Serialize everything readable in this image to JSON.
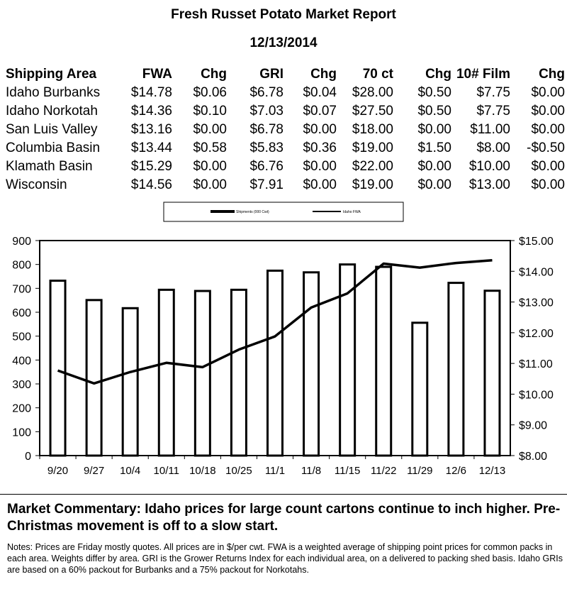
{
  "report": {
    "title": "Fresh Russet Potato Market Report",
    "date": "12/13/2014"
  },
  "table": {
    "headers": [
      "Shipping Area",
      "FWA",
      "Chg",
      "GRI",
      "Chg",
      "70 ct",
      "Chg",
      "10# Film",
      "Chg"
    ],
    "rows": [
      [
        "Idaho Burbanks",
        "$14.78",
        "$0.06",
        "$6.78",
        "$0.04",
        "$28.00",
        "$0.50",
        "$7.75",
        "$0.00"
      ],
      [
        "Idaho Norkotah",
        "$14.36",
        "$0.10",
        "$7.03",
        "$0.07",
        "$27.50",
        "$0.50",
        "$7.75",
        "$0.00"
      ],
      [
        "San Luis Valley",
        "$13.16",
        "$0.00",
        "$6.78",
        "$0.00",
        "$18.00",
        "$0.00",
        "$11.00",
        "$0.00"
      ],
      [
        "Columbia Basin",
        "$13.44",
        "$0.58",
        "$5.83",
        "$0.36",
        "$19.00",
        "$1.50",
        "$8.00",
        "-$0.50"
      ],
      [
        "Klamath Basin",
        "$15.29",
        "$0.00",
        "$6.76",
        "$0.00",
        "$22.00",
        "$0.00",
        "$10.00",
        "$0.00"
      ],
      [
        "Wisconsin",
        "$14.56",
        "$0.00",
        "$7.91",
        "$0.00",
        "$19.00",
        "$0.00",
        "$13.00",
        "$0.00"
      ]
    ]
  },
  "chart_data": {
    "type": "bar",
    "categories": [
      "9/20",
      "9/27",
      "10/4",
      "10/11",
      "10/18",
      "10/25",
      "11/1",
      "11/8",
      "11/15",
      "11/22",
      "11/29",
      "12/6",
      "12/13"
    ],
    "series": [
      {
        "name": "Shipments (000 Cwt)",
        "type": "bar",
        "axis": "left",
        "values": [
          732,
          651,
          617,
          694,
          689,
          694,
          774,
          767,
          800,
          790,
          556,
          723,
          690
        ]
      },
      {
        "name": "Idaho FWA",
        "type": "line",
        "axis": "right",
        "values": [
          10.77,
          10.35,
          10.72,
          11.02,
          10.88,
          11.45,
          11.88,
          12.82,
          13.28,
          14.25,
          14.12,
          14.27,
          14.36
        ]
      }
    ],
    "ylim_left": [
      0,
      900
    ],
    "yticks_left": [
      "0",
      "100",
      "200",
      "300",
      "400",
      "500",
      "600",
      "700",
      "800",
      "900"
    ],
    "ylim_right": [
      8,
      15
    ],
    "yticks_right": [
      "$8.00",
      "$9.00",
      "$10.00",
      "$11.00",
      "$12.00",
      "$13.00",
      "$14.00",
      "$15.00"
    ],
    "legend_position": "top"
  },
  "commentary": "Market Commentary: Idaho prices for large count cartons continue to inch higher. Pre-Christmas movement is off to a slow start.",
  "notes": "Notes: Prices are Friday mostly quotes. All prices are in $/per cwt. FWA is a weighted average of shipping point prices for  common packs in each area. Weights differ by area. GRI is the Grower Returns Index for each individual area, on a delivered to packing shed basis. Idaho GRIs are based on a 60% packout for Burbanks and a 75% packout for Norkotahs."
}
